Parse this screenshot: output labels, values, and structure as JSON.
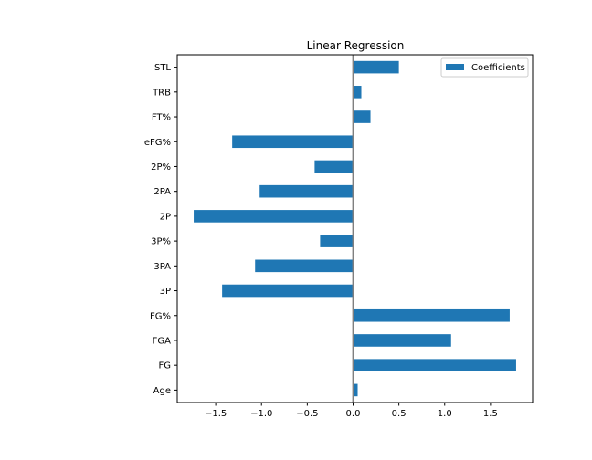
{
  "chart_data": {
    "type": "bar",
    "orientation": "horizontal",
    "title": "Linear Regression",
    "xlabel": "",
    "ylabel": "",
    "categories": [
      "Age",
      "FG",
      "FGA",
      "FG%",
      "3P",
      "3PA",
      "3P%",
      "2P",
      "2PA",
      "2P%",
      "eFG%",
      "FT%",
      "TRB",
      "STL"
    ],
    "series": [
      {
        "name": "Coefficients",
        "values": [
          0.05,
          1.78,
          1.07,
          1.71,
          -1.43,
          -1.07,
          -0.36,
          -1.74,
          -1.02,
          -0.42,
          -1.32,
          0.19,
          0.09,
          0.5
        ]
      }
    ],
    "xlim": [
      -1.92,
      1.96
    ],
    "xticks": [
      -1.5,
      -1.0,
      -0.5,
      0.0,
      0.5,
      1.0,
      1.5
    ],
    "xtick_labels": [
      "−1.5",
      "−1.0",
      "−0.5",
      "0.0",
      "0.5",
      "1.0",
      "1.5"
    ],
    "zero_line": true,
    "grid": false,
    "legend_position": "top-right",
    "colors": {
      "bar": "#1f77b4",
      "zero_line": "#808080",
      "axes": "#000000"
    }
  }
}
